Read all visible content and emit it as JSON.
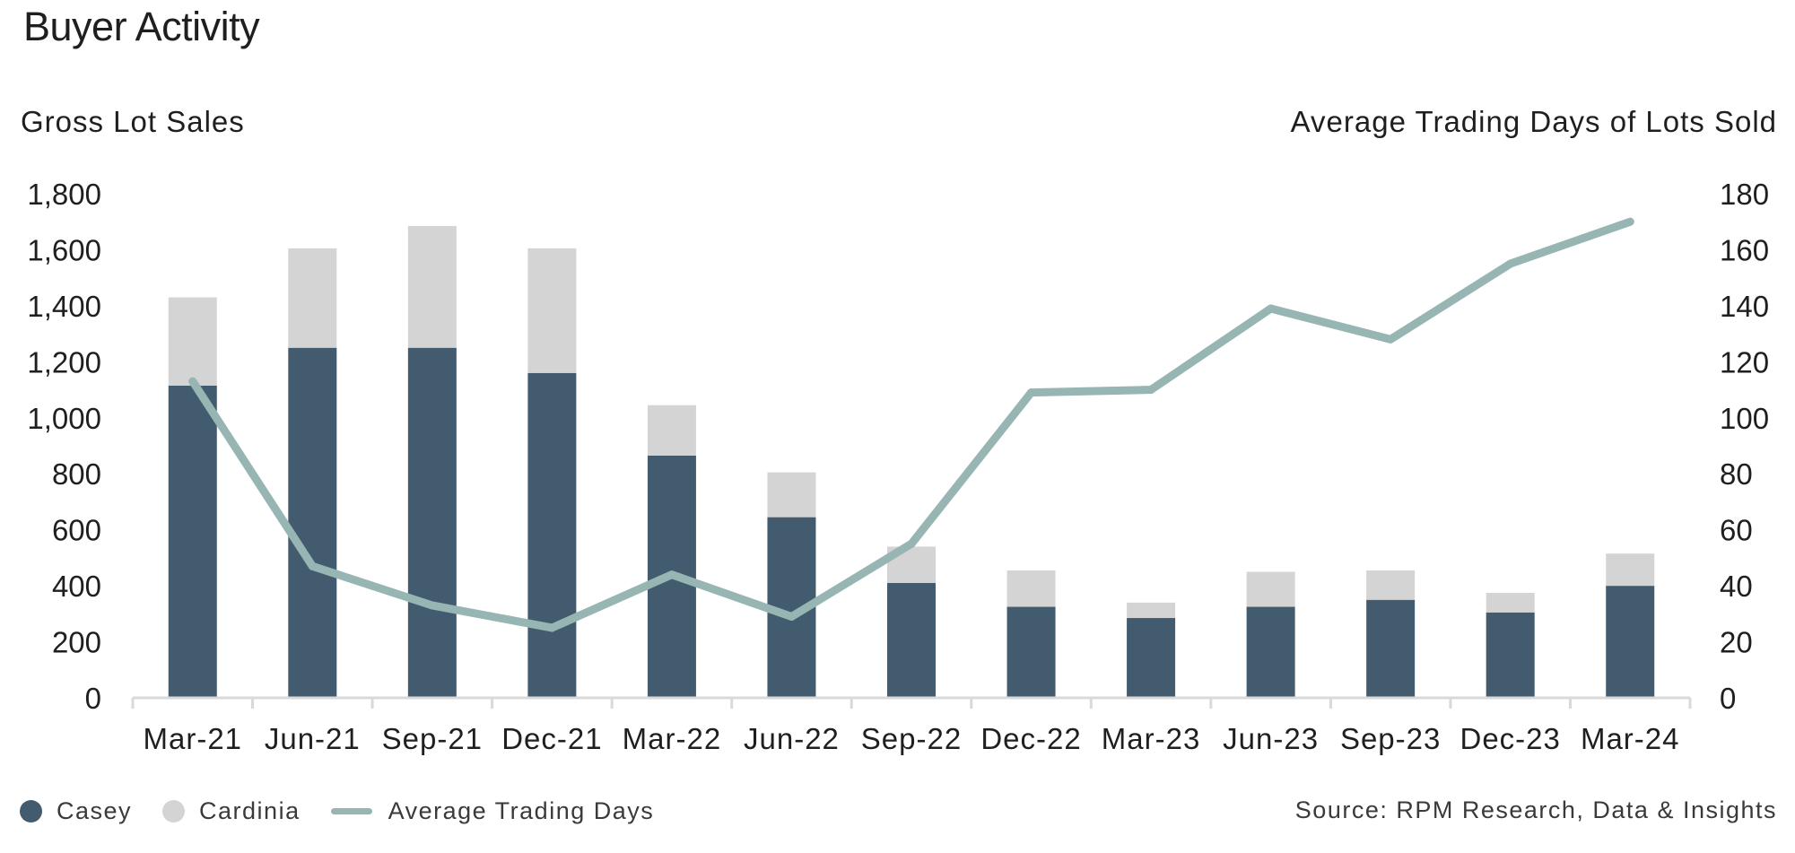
{
  "chart_data": {
    "type": "bar",
    "title": "Buyer Activity",
    "ylabel": "Gross Lot Sales",
    "ylabel_right": "Average Trading Days of Lots Sold",
    "categories": [
      "Mar-21",
      "Jun-21",
      "Sep-21",
      "Dec-21",
      "Mar-22",
      "Jun-22",
      "Sep-22",
      "Dec-22",
      "Mar-23",
      "Jun-23",
      "Sep-23",
      "Dec-23",
      "Mar-24"
    ],
    "stacked": true,
    "series": [
      {
        "name": "Casey",
        "type": "bar",
        "axis": "left",
        "color": "#425b6e",
        "values": [
          1115,
          1250,
          1250,
          1160,
          865,
          645,
          410,
          325,
          285,
          325,
          350,
          305,
          400
        ]
      },
      {
        "name": "Cardinia",
        "type": "bar",
        "axis": "left",
        "color": "#d3d4d3",
        "values": [
          315,
          355,
          435,
          445,
          180,
          160,
          130,
          130,
          55,
          125,
          105,
          70,
          115
        ]
      },
      {
        "name": "Average Trading Days",
        "type": "line",
        "axis": "right",
        "color": "#97b5b3",
        "values": [
          113,
          47,
          33,
          25,
          44,
          29,
          55,
          109,
          110,
          139,
          128,
          155,
          170
        ]
      }
    ],
    "ylim": [
      0,
      1800
    ],
    "ylim_right": [
      0,
      180
    ],
    "yticks": [
      "0",
      "200",
      "400",
      "600",
      "800",
      "1,000",
      "1,200",
      "1,400",
      "1,600",
      "1,800"
    ],
    "yticks_right": [
      "0",
      "20",
      "40",
      "60",
      "80",
      "100",
      "120",
      "140",
      "160",
      "180"
    ],
    "grid": false,
    "legend_position": "bottom-left"
  },
  "legend": {
    "casey": "Casey",
    "cardinia": "Cardinia",
    "avg": "Average Trading Days"
  },
  "source": "Source: RPM Research, Data & Insights"
}
